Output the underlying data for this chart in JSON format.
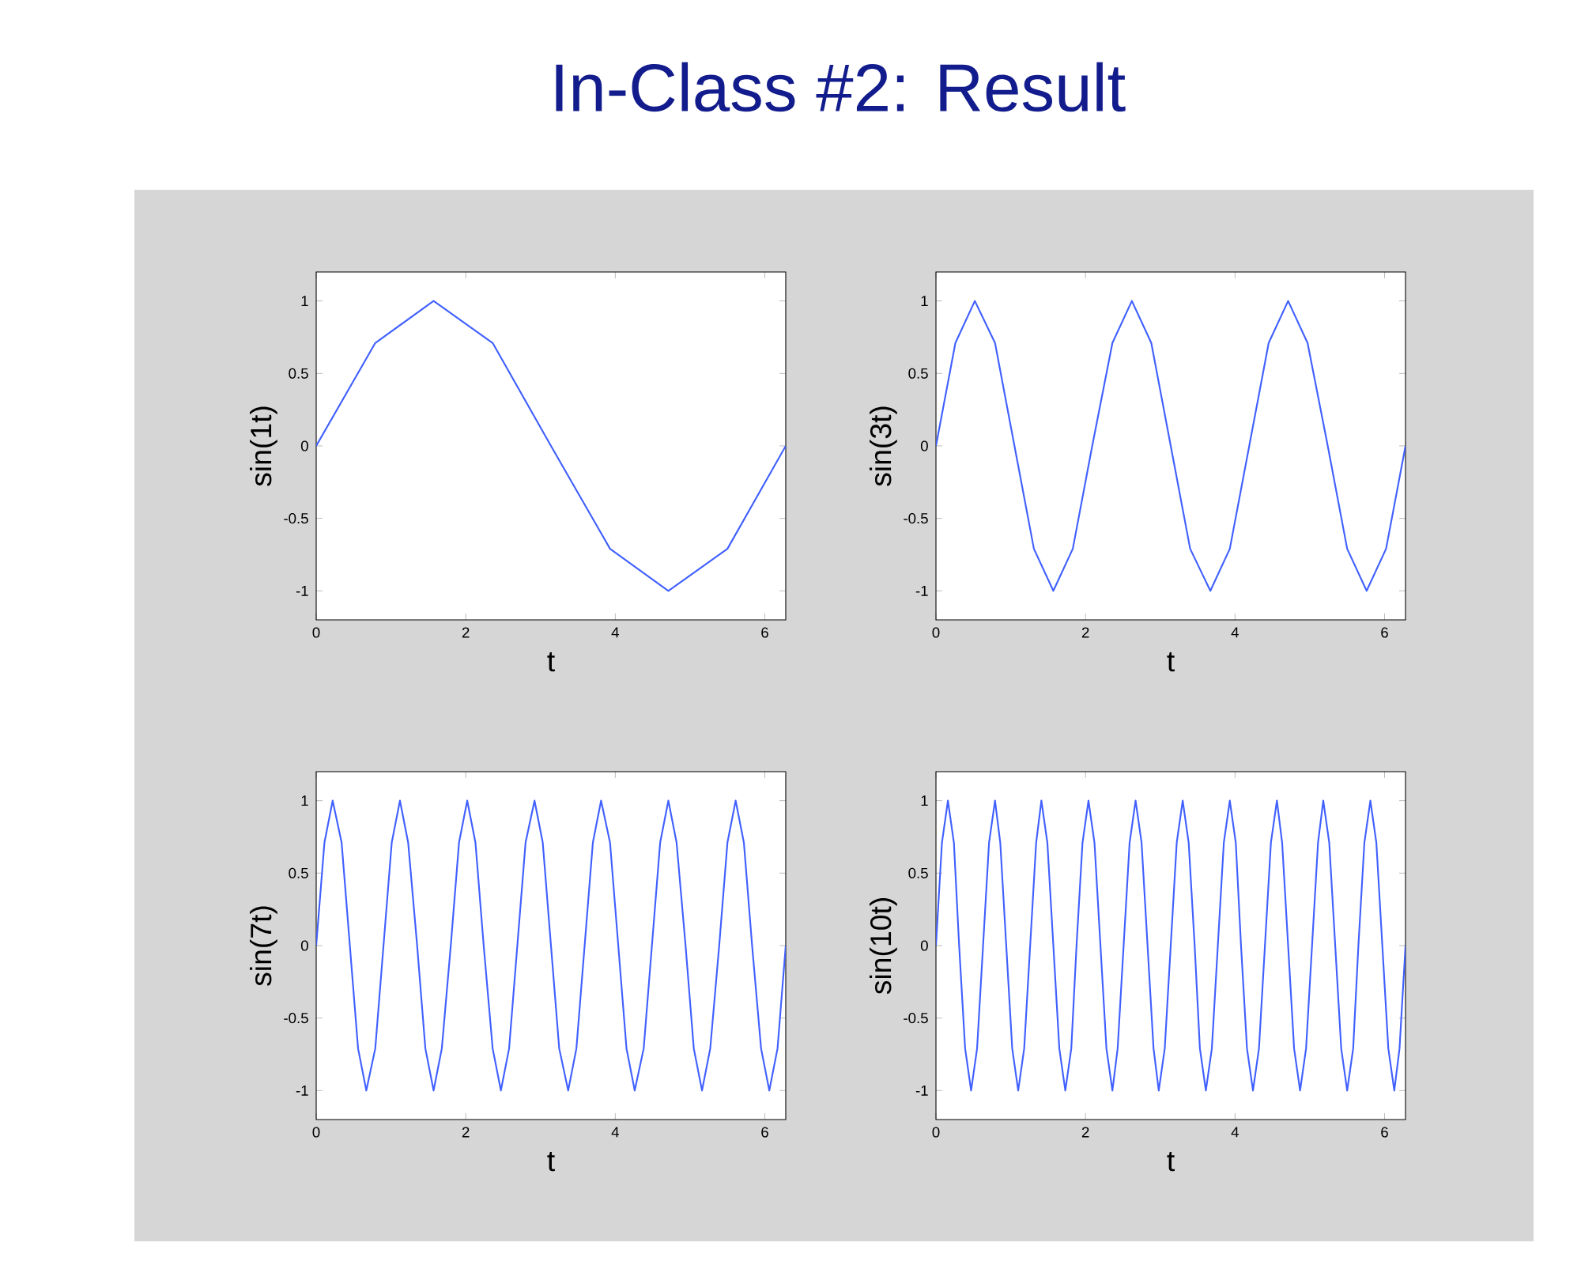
{
  "chart_data": [
    {
      "type": "line",
      "title": "In-Class #2: Result",
      "xlabel": "t",
      "ylabel": "sin(1t)",
      "color": "#4060ff",
      "xlim": [
        0,
        6.28
      ],
      "ylim": [
        -1.2,
        1.2
      ],
      "xticks": [
        0,
        2,
        4,
        6
      ],
      "yticks": [
        -1,
        -0.5,
        0,
        0.5,
        1
      ],
      "x": [
        0,
        0.79,
        1.57,
        2.36,
        3.14,
        3.93,
        4.71,
        5.5,
        6.28
      ],
      "values": [
        0,
        0.71,
        1,
        0.71,
        0,
        -0.71,
        -1,
        -0.71,
        0
      ]
    },
    {
      "type": "line",
      "xlabel": "t",
      "ylabel": "sin(3t)",
      "color": "#4060ff",
      "xlim": [
        0,
        6.28
      ],
      "ylim": [
        -1.2,
        1.2
      ],
      "xticks": [
        0,
        2,
        4,
        6
      ],
      "yticks": [
        -1,
        -0.5,
        0,
        0.5,
        1
      ],
      "x": [
        0,
        0.26,
        0.52,
        0.79,
        1.05,
        1.31,
        1.57,
        1.83,
        2.09,
        2.36,
        2.62,
        2.88,
        3.14,
        3.4,
        3.67,
        3.93,
        4.19,
        4.45,
        4.71,
        4.97,
        5.24,
        5.5,
        5.76,
        6.02,
        6.28
      ],
      "values": [
        0,
        0.71,
        1,
        0.71,
        0,
        -0.71,
        -1,
        -0.71,
        0,
        0.71,
        1,
        0.71,
        0,
        -0.71,
        -1,
        -0.71,
        0,
        0.71,
        1,
        0.71,
        0,
        -0.71,
        -1,
        -0.71,
        0
      ]
    },
    {
      "type": "line",
      "xlabel": "t",
      "ylabel": "sin(7t)",
      "color": "#4060ff",
      "xlim": [
        0,
        6.28
      ],
      "ylim": [
        -1.2,
        1.2
      ],
      "xticks": [
        0,
        2,
        4,
        6
      ],
      "yticks": [
        -1,
        -0.5,
        0,
        0.5,
        1
      ],
      "x": [
        0,
        0.11,
        0.22,
        0.34,
        0.45,
        0.56,
        0.67,
        0.79,
        0.9,
        1.01,
        1.12,
        1.23,
        1.35,
        1.46,
        1.57,
        1.68,
        1.8,
        1.91,
        2.02,
        2.13,
        2.24,
        2.36,
        2.47,
        2.58,
        2.69,
        2.8,
        2.92,
        3.03,
        3.14,
        3.25,
        3.37,
        3.48,
        3.59,
        3.7,
        3.81,
        3.93,
        4.04,
        4.15,
        4.26,
        4.38,
        4.49,
        4.6,
        4.71,
        4.82,
        4.94,
        5.05,
        5.16,
        5.27,
        5.39,
        5.5,
        5.61,
        5.72,
        5.83,
        5.95,
        6.06,
        6.17,
        6.28
      ],
      "values": [
        0,
        0.71,
        1,
        0.71,
        0,
        -0.71,
        -1,
        -0.71,
        0,
        0.71,
        1,
        0.71,
        0,
        -0.71,
        -1,
        -0.71,
        0,
        0.71,
        1,
        0.71,
        0,
        -0.71,
        -1,
        -0.71,
        0,
        0.71,
        1,
        0.71,
        0,
        -0.71,
        -1,
        -0.71,
        0,
        0.71,
        1,
        0.71,
        0,
        -0.71,
        -1,
        -0.71,
        0,
        0.71,
        1,
        0.71,
        0,
        -0.71,
        -1,
        -0.71,
        0,
        0.71,
        1,
        0.71,
        0,
        -0.71,
        -1,
        -0.71,
        0
      ]
    },
    {
      "type": "line",
      "xlabel": "t",
      "ylabel": "sin(10t)",
      "color": "#4060ff",
      "xlim": [
        0,
        6.28
      ],
      "ylim": [
        -1.2,
        1.2
      ],
      "xticks": [
        0,
        2,
        4,
        6
      ],
      "yticks": [
        -1,
        -0.5,
        0,
        0.5,
        1
      ],
      "x": [
        0,
        0.08,
        0.16,
        0.24,
        0.31,
        0.39,
        0.47,
        0.55,
        0.63,
        0.71,
        0.79,
        0.86,
        0.94,
        1.02,
        1.1,
        1.18,
        1.26,
        1.34,
        1.41,
        1.49,
        1.57,
        1.65,
        1.73,
        1.81,
        1.88,
        1.96,
        2.04,
        2.12,
        2.2,
        2.28,
        2.36,
        2.43,
        2.51,
        2.59,
        2.67,
        2.75,
        2.83,
        2.91,
        2.98,
        3.06,
        3.14,
        3.22,
        3.3,
        3.38,
        3.46,
        3.53,
        3.61,
        3.69,
        3.77,
        3.85,
        3.93,
        4.01,
        4.08,
        4.16,
        4.24,
        4.32,
        4.4,
        4.48,
        4.56,
        4.63,
        4.71,
        4.79,
        4.87,
        4.95,
        5.03,
        5.11,
        5.18,
        5.26,
        5.34,
        5.42,
        5.5,
        5.58,
        5.65,
        5.73,
        5.81,
        5.89,
        5.97,
        6.05,
        6.13,
        6.2,
        6.28
      ],
      "values": [
        0,
        0.71,
        1,
        0.71,
        0,
        -0.71,
        -1,
        -0.71,
        0,
        0.71,
        1,
        0.71,
        0,
        -0.71,
        -1,
        -0.71,
        0,
        0.71,
        1,
        0.71,
        0,
        -0.71,
        -1,
        -0.71,
        0,
        0.71,
        1,
        0.71,
        0,
        -0.71,
        -1,
        -0.71,
        0,
        0.71,
        1,
        0.71,
        0,
        -0.71,
        -1,
        -0.71,
        0,
        0.71,
        1,
        0.71,
        0,
        -0.71,
        -1,
        -0.71,
        0,
        0.71,
        1,
        0.71,
        0,
        -0.71,
        -1,
        -0.71,
        0,
        0.71,
        1,
        0.71,
        0,
        -0.71,
        -1,
        -0.71,
        0,
        0.71,
        1,
        0.71,
        0,
        -0.71,
        -1,
        -0.71,
        0,
        0.71,
        1,
        0.71,
        0,
        -0.71,
        -1,
        -0.71,
        0
      ]
    }
  ]
}
